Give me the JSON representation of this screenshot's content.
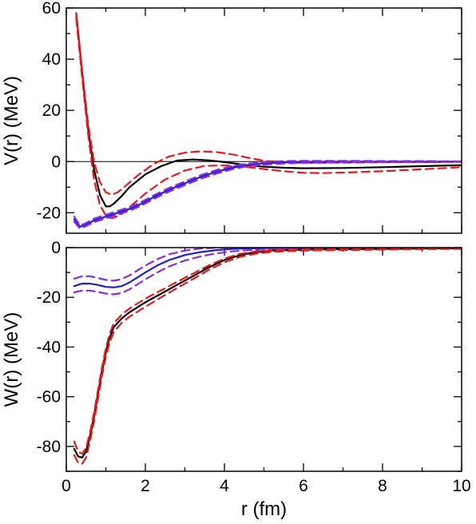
{
  "chart_data": [
    {
      "type": "line",
      "panel": "top",
      "xlabel": "",
      "ylabel": "V(r) (MeV)",
      "xlim": [
        0,
        10
      ],
      "ylim": [
        -28,
        60
      ],
      "yticks": [
        -20,
        0,
        20,
        40,
        60
      ],
      "ytick_labels": [
        "-20",
        "0",
        "20",
        "40",
        "60"
      ],
      "xtick_labels_shown": false,
      "zero_line": true,
      "series": [
        {
          "color": "#000000",
          "dash": "solid",
          "x": [
            0.25,
            0.4,
            0.55,
            0.7,
            0.85,
            1.0,
            1.1,
            1.2,
            1.4,
            1.6,
            2.0,
            2.4,
            2.8,
            3.2,
            3.6,
            4.0,
            4.5,
            5.0,
            5.5,
            6.0,
            7.0,
            8.0,
            9.0,
            10.0
          ],
          "y": [
            58,
            35,
            13,
            -3,
            -13,
            -17.5,
            -17.5,
            -16.5,
            -13.5,
            -10,
            -5,
            -1.8,
            0.4,
            0.8,
            0.5,
            -0.2,
            -1.3,
            -2,
            -2.4,
            -2.6,
            -2.5,
            -2.2,
            -1.8,
            -1.4
          ]
        },
        {
          "color": "#e41a1c",
          "dash": "dash",
          "x": [
            0.25,
            0.4,
            0.55,
            0.7,
            0.85,
            1.0,
            1.15,
            1.3,
            1.5,
            1.8,
            2.2,
            2.6,
            3.0,
            3.4,
            3.8,
            4.2,
            4.6,
            5.0,
            5.5,
            6.0,
            7.0,
            8.0,
            9.0,
            10.0
          ],
          "y": [
            58,
            36,
            15,
            0,
            -8,
            -12,
            -13,
            -12,
            -9.5,
            -5.5,
            -1,
            2,
            3.5,
            4,
            3.7,
            2.8,
            1.5,
            0.3,
            -0.3,
            -0.5,
            -0.4,
            -0.3,
            -0.2,
            -0.1
          ]
        },
        {
          "color": "#e41a1c",
          "dash": "dash",
          "x": [
            0.25,
            0.4,
            0.55,
            0.7,
            0.85,
            1.0,
            1.1,
            1.2,
            1.4,
            1.7,
            2.0,
            2.5,
            3.0,
            3.5,
            4.0,
            4.5,
            5.0,
            5.5,
            6.0,
            6.5,
            7.0,
            8.0,
            9.0,
            10.0
          ],
          "y": [
            56,
            33,
            11,
            -7,
            -17,
            -21,
            -22,
            -22,
            -20.5,
            -16.5,
            -12.5,
            -7,
            -3.5,
            -1.7,
            -1.5,
            -2,
            -2.9,
            -3.8,
            -4.4,
            -4.5,
            -4.3,
            -3.8,
            -3,
            -2.2
          ]
        },
        {
          "color": "#1f1fcc",
          "dash": "solid",
          "x": [
            0.2,
            0.35,
            0.5,
            0.7,
            1.0,
            1.3,
            1.6,
            1.9,
            2.2,
            2.6,
            3.0,
            3.4,
            3.8,
            4.2,
            4.6,
            5.0,
            5.5,
            6.0,
            7.0,
            8.0,
            9.0,
            10.0
          ],
          "y": [
            -22.5,
            -25.5,
            -24.5,
            -23,
            -21.5,
            -20,
            -18.5,
            -16.5,
            -14,
            -11,
            -8.5,
            -6,
            -4,
            -2.4,
            -1.3,
            -0.7,
            -0.3,
            -0.1,
            0,
            0,
            0,
            0
          ]
        },
        {
          "color": "#8a2be2",
          "dash": "dash",
          "x": [
            0.2,
            0.35,
            0.5,
            0.7,
            1.0,
            1.3,
            1.6,
            1.9,
            2.2,
            2.6,
            3.0,
            3.4,
            3.8,
            4.2,
            4.6,
            5.0,
            5.5,
            6.0,
            7.0,
            8.0,
            9.0,
            10.0
          ],
          "y": [
            -21.5,
            -25,
            -24,
            -22.3,
            -20.8,
            -19.3,
            -17.8,
            -15.8,
            -13.3,
            -10.3,
            -7.8,
            -5.3,
            -3.3,
            -1.8,
            -0.8,
            -0.2,
            0.2,
            0.3,
            0.3,
            0.2,
            0.2,
            0.1
          ]
        },
        {
          "color": "#8a2be2",
          "dash": "dash",
          "x": [
            0.2,
            0.35,
            0.5,
            0.7,
            1.0,
            1.3,
            1.6,
            1.9,
            2.2,
            2.6,
            3.0,
            3.4,
            3.8,
            4.2,
            4.6,
            5.0,
            5.5,
            6.0,
            7.0,
            8.0,
            9.0,
            10.0
          ],
          "y": [
            -23.5,
            -26.2,
            -25.2,
            -23.7,
            -22.2,
            -20.7,
            -19.2,
            -17.2,
            -14.7,
            -11.7,
            -9.2,
            -6.7,
            -4.7,
            -3,
            -1.8,
            -1.2,
            -0.8,
            -0.5,
            -0.3,
            -0.2,
            -0.2,
            -0.1
          ]
        }
      ]
    },
    {
      "type": "line",
      "panel": "bottom",
      "xlabel": "r (fm)",
      "ylabel": "W(r) (MeV)",
      "xlim": [
        0,
        10
      ],
      "ylim": [
        -90,
        0
      ],
      "xticks": [
        0,
        2,
        4,
        6,
        8,
        10
      ],
      "xtick_labels": [
        "0",
        "2",
        "4",
        "6",
        "8",
        "10"
      ],
      "yticks": [
        -80,
        -60,
        -40,
        -20,
        0
      ],
      "ytick_labels": [
        "-80",
        "-60",
        "-40",
        "-20",
        "0"
      ],
      "series": [
        {
          "color": "#1f1fcc",
          "dash": "solid",
          "x": [
            0.2,
            0.4,
            0.6,
            0.8,
            1.0,
            1.2,
            1.4,
            1.6,
            1.8,
            2.0,
            2.3,
            2.6,
            3.0,
            3.4,
            3.8,
            4.2,
            4.6,
            5.0,
            6.0,
            7.0,
            8.0,
            9.0,
            10.0
          ],
          "y": [
            -15.5,
            -14.5,
            -14.5,
            -15,
            -15.8,
            -16,
            -15.5,
            -14,
            -12,
            -10,
            -7.2,
            -5,
            -3,
            -1.8,
            -1,
            -0.5,
            -0.3,
            -0.2,
            0,
            0,
            0,
            0,
            0
          ]
        },
        {
          "color": "#8a2be2",
          "dash": "dash",
          "x": [
            0.2,
            0.4,
            0.6,
            0.8,
            1.0,
            1.2,
            1.4,
            1.6,
            1.8,
            2.0,
            2.3,
            2.6,
            3.0,
            3.4,
            3.8,
            4.2,
            4.6,
            5.0,
            6.0,
            7.0,
            8.0,
            9.0,
            10.0
          ],
          "y": [
            -12.5,
            -11.5,
            -11.5,
            -12.2,
            -13,
            -13.3,
            -12.7,
            -11.2,
            -9.2,
            -7.2,
            -4.7,
            -2.7,
            -1.2,
            -0.4,
            0,
            0.1,
            0.1,
            0.1,
            0,
            0,
            0,
            0,
            0
          ]
        },
        {
          "color": "#8a2be2",
          "dash": "dash",
          "x": [
            0.2,
            0.4,
            0.6,
            0.8,
            1.0,
            1.2,
            1.4,
            1.6,
            1.8,
            2.0,
            2.3,
            2.6,
            3.0,
            3.4,
            3.8,
            4.2,
            4.6,
            5.0,
            6.0,
            7.0,
            8.0,
            9.0,
            10.0
          ],
          "y": [
            -18,
            -17.3,
            -17.3,
            -17.8,
            -18.5,
            -18.8,
            -18.3,
            -16.8,
            -14.8,
            -12.8,
            -10,
            -7.6,
            -5.2,
            -3.5,
            -2.3,
            -1.5,
            -1,
            -0.7,
            -0.3,
            -0.2,
            -0.1,
            0,
            0
          ]
        },
        {
          "color": "#000000",
          "dash": "solid",
          "x": [
            0.2,
            0.3,
            0.4,
            0.5,
            0.6,
            0.7,
            0.8,
            0.9,
            1.0,
            1.1,
            1.2,
            1.4,
            1.6,
            1.8,
            2.0,
            2.4,
            2.8,
            3.2,
            3.6,
            4.0,
            4.4,
            4.8,
            5.2,
            6.0,
            7.0,
            8.0,
            9.0,
            10.0
          ],
          "y": [
            -81,
            -84,
            -84.5,
            -82,
            -76,
            -68,
            -59,
            -50,
            -42,
            -36,
            -32,
            -28.5,
            -26,
            -24,
            -22,
            -18.5,
            -15,
            -11.5,
            -8,
            -5,
            -3,
            -1.8,
            -1.2,
            -0.8,
            -0.6,
            -0.5,
            -0.4,
            -0.3
          ]
        },
        {
          "color": "#e41a1c",
          "dash": "dash",
          "x": [
            0.2,
            0.3,
            0.4,
            0.5,
            0.6,
            0.7,
            0.8,
            0.9,
            1.0,
            1.1,
            1.2,
            1.4,
            1.6,
            1.8,
            2.0,
            2.4,
            2.8,
            3.2,
            3.6,
            4.0,
            4.4,
            4.8,
            5.2,
            6.0,
            7.0,
            8.0,
            9.0,
            10.0
          ],
          "y": [
            -78,
            -82,
            -83,
            -80.5,
            -74.5,
            -66.5,
            -57.5,
            -48.5,
            -40.5,
            -34.5,
            -30.5,
            -27,
            -24.5,
            -22.5,
            -20.5,
            -17.2,
            -13.8,
            -10.5,
            -7.2,
            -4.4,
            -2.5,
            -1.5,
            -1,
            -0.7,
            -0.5,
            -0.4,
            -0.3,
            -0.2
          ]
        },
        {
          "color": "#e41a1c",
          "dash": "dash",
          "x": [
            0.2,
            0.3,
            0.4,
            0.5,
            0.6,
            0.7,
            0.8,
            0.9,
            1.0,
            1.1,
            1.2,
            1.4,
            1.6,
            1.8,
            2.0,
            2.4,
            2.8,
            3.2,
            3.6,
            4.0,
            4.4,
            4.8,
            5.2,
            6.0,
            7.0,
            8.0,
            9.0,
            10.0
          ],
          "y": [
            -83.5,
            -86.5,
            -87,
            -84.5,
            -78,
            -70,
            -61,
            -52,
            -44,
            -38,
            -34,
            -30.3,
            -27.8,
            -25.8,
            -23.8,
            -20,
            -16.3,
            -12.7,
            -9,
            -5.9,
            -3.7,
            -2.4,
            -1.7,
            -1.2,
            -1,
            -0.8,
            -0.6,
            -0.5
          ]
        }
      ]
    }
  ]
}
